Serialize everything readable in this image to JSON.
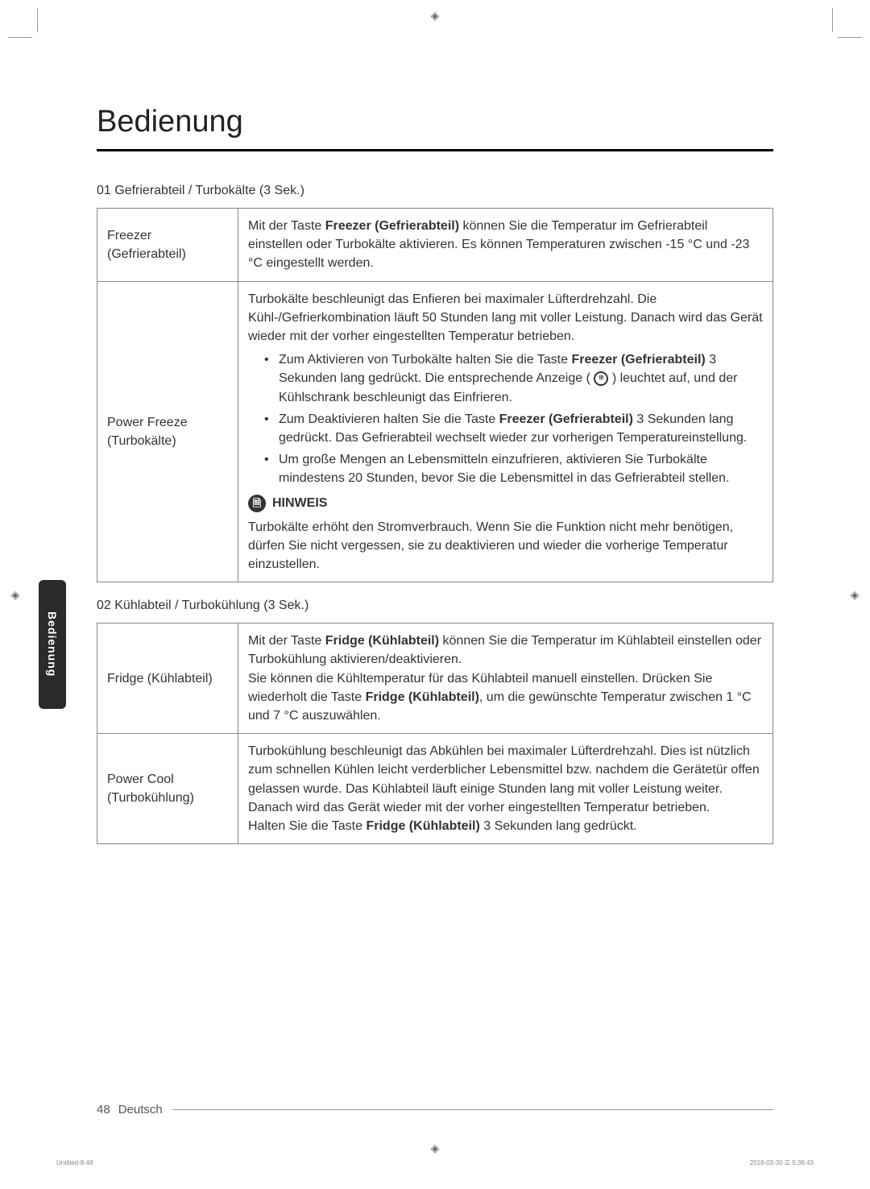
{
  "title": "Bedienung",
  "sideTab": "Bedienung",
  "section01": {
    "label": "01 Gefrierabteil / Turbokälte (3 Sek.)",
    "row1": {
      "name": "Freezer (Gefrierabteil)",
      "desc_pre": "Mit der Taste ",
      "desc_bold": "Freezer (Gefrierabteil)",
      "desc_post": " können Sie die Temperatur im Gefrierabteil einstellen oder Turbokälte aktivieren. Es können Temperaturen zwischen -15 °C und -23 °C eingestellt werden."
    },
    "row2": {
      "name": "Power Freeze (Turbokälte)",
      "intro": "Turbokälte beschleunigt das Enfieren bei maximaler Lüfterdrehzahl. Die Kühl-/Gefrierkombination läuft 50 Stunden lang mit voller Leistung. Danach wird das Gerät wieder mit der vorher eingestellten Temperatur betrieben.",
      "b1_pre": "Zum Aktivieren von Turbokälte halten Sie die Taste ",
      "b1_bold": "Freezer (Gefrierabteil)",
      "b1_post": " 3 Sekunden lang gedrückt. Die entsprechende Anzeige ( ",
      "b1_post2": " ) leuchtet auf, und der Kühlschrank beschleunigt das Einfrieren.",
      "b2_pre": "Zum Deaktivieren halten Sie die Taste ",
      "b2_bold": "Freezer (Gefrierabteil)",
      "b2_post": " 3 Sekunden lang gedrückt. Das Gefrierabteil wechselt wieder zur vorherigen Temperatureinstellung.",
      "b3": "Um große Mengen an Lebensmitteln einzufrieren, aktivieren Sie Turbokälte mindestens 20 Stunden, bevor Sie die Lebensmittel in das Gefrierabteil stellen.",
      "hinweisLabel": "HINWEIS",
      "hinweisText": "Turbokälte erhöht den Stromverbrauch. Wenn Sie die Funktion nicht mehr benötigen, dürfen Sie nicht vergessen, sie zu deaktivieren und wieder die vorherige Temperatur einzustellen."
    }
  },
  "section02": {
    "label": "02 Kühlabteil / Turbokühlung (3 Sek.)",
    "row1": {
      "name": "Fridge (Kühlabteil)",
      "p1_pre": "Mit der Taste ",
      "p1_bold": "Fridge (Kühlabteil)",
      "p1_post": " können Sie die Temperatur im Kühlabteil einstellen oder Turbokühlung aktivieren/deaktivieren.",
      "p2_pre": "Sie können die Kühltemperatur für das Kühlabteil manuell einstellen. Drücken Sie wiederholt die Taste ",
      "p2_bold": "Fridge (Kühlabteil)",
      "p2_post": ", um die gewünschte Temperatur zwischen 1 °C und 7 °C auszuwählen."
    },
    "row2": {
      "name": "Power Cool (Turbokühlung)",
      "p1": "Turbokühlung beschleunigt das Abkühlen bei maximaler Lüfterdrehzahl. Dies ist nützlich zum schnellen Kühlen leicht verderblicher Lebensmittel bzw. nachdem die Gerätetür offen gelassen wurde. Das Kühlabteil läuft einige Stunden lang mit voller Leistung weiter. Danach wird das Gerät wieder mit der vorher eingestellten Temperatur betrieben.",
      "p2_pre": "Halten Sie die Taste ",
      "p2_bold": "Fridge (Kühlabteil)",
      "p2_post": " 3 Sekunden lang gedrückt."
    }
  },
  "footer": {
    "pageNum": "48",
    "lang": "Deutsch"
  },
  "bottomMeta": {
    "left": "Untitled-8   48",
    "right": "2018-03-30   ☰ 5:36:43"
  }
}
